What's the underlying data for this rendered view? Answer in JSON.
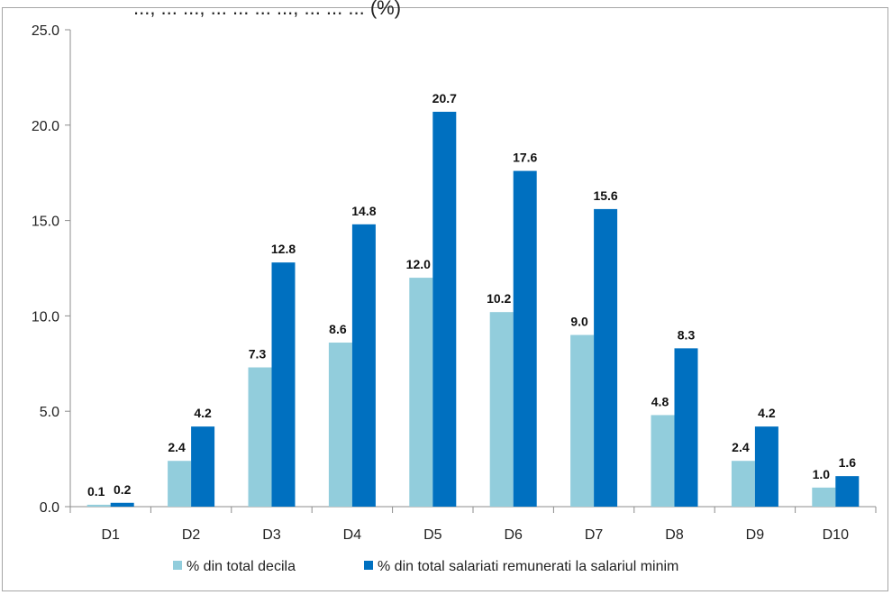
{
  "chart_data": {
    "type": "bar",
    "categories": [
      "D1",
      "D2",
      "D3",
      "D4",
      "D5",
      "D6",
      "D7",
      "D8",
      "D9",
      "D10"
    ],
    "series": [
      {
        "name": "% din total decila",
        "color": "#92cddc",
        "values": [
          0.1,
          2.4,
          7.3,
          8.6,
          12.0,
          10.2,
          9.0,
          4.8,
          2.4,
          1.0
        ],
        "labels": [
          "0.1",
          "2.4",
          "7.3",
          "8.6",
          "12.0",
          "10.2",
          "9.0",
          "4.8",
          "2.4",
          "1.0"
        ]
      },
      {
        "name": "% din total salariati remunerati la salariul minim",
        "color": "#0070c0",
        "values": [
          0.2,
          4.2,
          12.8,
          14.8,
          20.7,
          17.6,
          15.6,
          8.3,
          4.2,
          1.6
        ],
        "labels": [
          "0.2",
          "4.2",
          "12.8",
          "14.8",
          "20.7",
          "17.6",
          "15.6",
          "8.3",
          "4.2",
          "1.6"
        ]
      }
    ],
    "ylim": [
      0,
      25
    ],
    "yticks": [
      0,
      5,
      10,
      15,
      20,
      25
    ],
    "ytick_labels": [
      "0.0",
      "5.0",
      "10.0",
      "15.0",
      "20.0",
      "25.0"
    ],
    "title": "",
    "xlabel": "",
    "ylabel": "",
    "grid": false,
    "legend_position": "bottom",
    "top_caption_fragment": "..., ... ..., ... ... ... ..., ... ... ... (%)"
  }
}
